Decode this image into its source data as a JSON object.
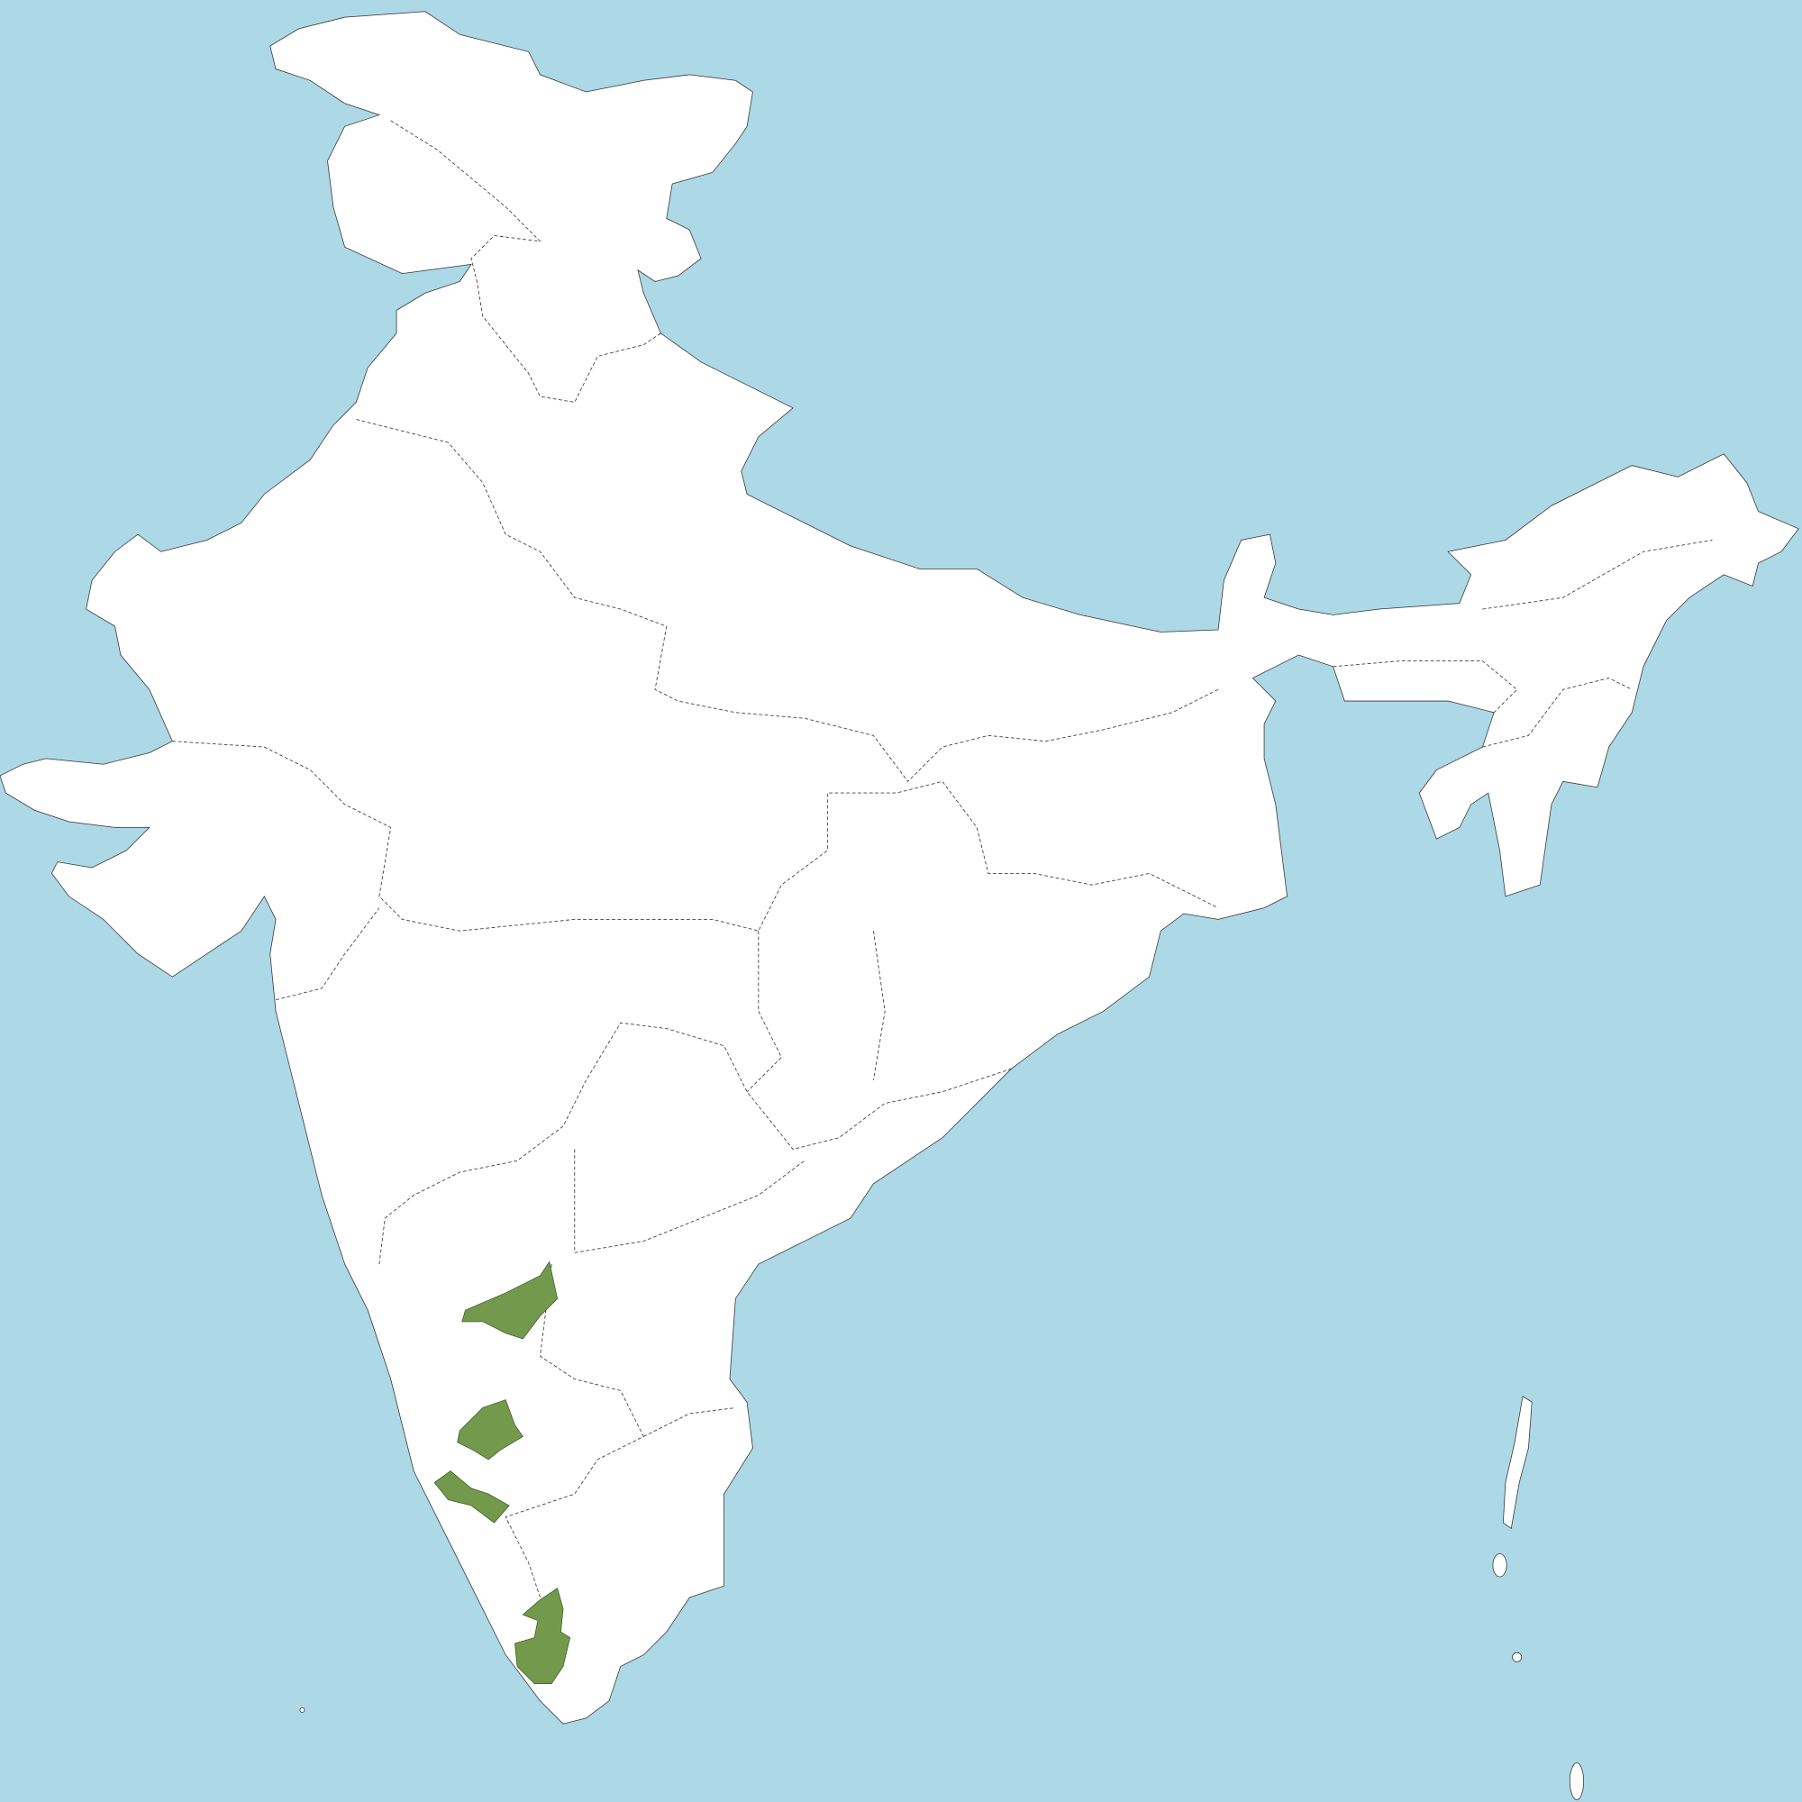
{
  "map": {
    "colors": {
      "water": "#add8e6",
      "land": "#ffffff",
      "highlight": "#739a4c",
      "border": "#444444"
    },
    "highlighted_regions_count": 4
  }
}
